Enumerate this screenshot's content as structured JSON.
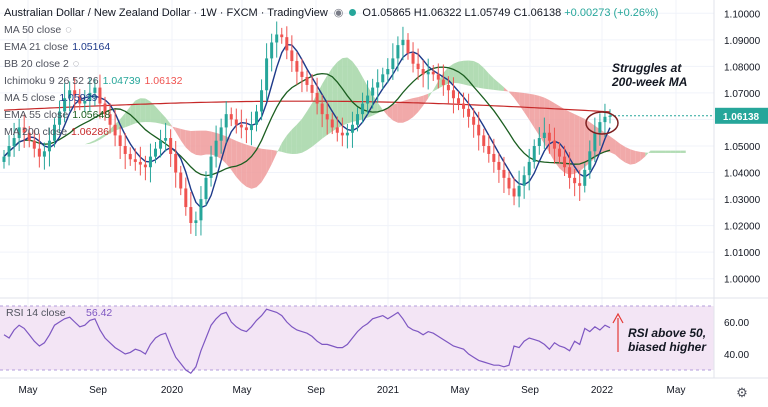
{
  "header": {
    "title": "Australian Dollar / New Zealand Dollar · 1W · FXCM · TradingView",
    "ohlc": "O1.05865 H1.06322 L1.05749 C1.06138",
    "change": "+0.00273 (+0.26%)"
  },
  "legend": [
    {
      "label": "MA 50 close",
      "value": "",
      "color": "#787b86"
    },
    {
      "label": "EMA 21 close",
      "value": "1.05164",
      "color": "#1e3a8a"
    },
    {
      "label": "BB 20 close 2",
      "value": "",
      "color": "#787b86"
    },
    {
      "label": "Ichimoku 9 26 52 26",
      "value": "1.04739",
      "value2": "1.06132",
      "color": "#26a69a",
      "color2": "#ef5350"
    },
    {
      "label": "MA 5 close",
      "value": "1.05929",
      "color": "#1e3a8a"
    },
    {
      "label": "EMA 55 close",
      "value": "1.05648",
      "color": "#1b5e20"
    },
    {
      "label": "MA 200 close",
      "value": "1.06286",
      "color": "#c62828"
    }
  ],
  "annotations": {
    "main": "Struggles at\n200-week MA",
    "rsi": "RSI above 50,\nbiased higher"
  },
  "rsi_legend": {
    "label": "RSI 14 close",
    "value": "56.42"
  },
  "price_label": "1.06138",
  "colors": {
    "up": "#26a69a",
    "down": "#ef5350",
    "rsi_line": "#7e57c2",
    "rsi_bg": "#f3e5f5",
    "cloud_bull": "#a5d6a7",
    "cloud_bear": "#ef9a9a"
  },
  "chart_data": [
    {
      "type": "candlestick",
      "title": "Australian Dollar / New Zealand Dollar · 1W · FXCM",
      "x_ticks": [
        "May",
        "Sep",
        "2020",
        "May",
        "Sep",
        "2021",
        "May",
        "Sep",
        "2022",
        "May"
      ],
      "y_ticks": [
        1.1,
        1.09,
        1.08,
        1.07,
        1.06,
        1.05,
        1.04,
        1.03,
        1.02,
        1.01,
        1.0
      ],
      "y_tick_labels": [
        "1.10000",
        "1.09000",
        "1.08000",
        "1.07000",
        "1.06000",
        "1.05000",
        "1.04000",
        "1.03000",
        "1.02000",
        "1.01000",
        "1.00000"
      ],
      "ylim": [
        0.995,
        1.105
      ],
      "last_price": 1.06138,
      "close_series": [
        1.046,
        1.05,
        1.053,
        1.057,
        1.055,
        1.052,
        1.049,
        1.046,
        1.048,
        1.052,
        1.058,
        1.063,
        1.068,
        1.071,
        1.069,
        1.066,
        1.067,
        1.07,
        1.072,
        1.066,
        1.062,
        1.058,
        1.054,
        1.05,
        1.047,
        1.045,
        1.044,
        1.043,
        1.042,
        1.046,
        1.049,
        1.052,
        1.053,
        1.047,
        1.04,
        1.034,
        1.027,
        1.021,
        1.022,
        1.03,
        1.038,
        1.046,
        1.052,
        1.057,
        1.062,
        1.06,
        1.058,
        1.057,
        1.056,
        1.058,
        1.063,
        1.071,
        1.083,
        1.089,
        1.092,
        1.091,
        1.086,
        1.082,
        1.078,
        1.076,
        1.073,
        1.07,
        1.066,
        1.062,
        1.06,
        1.057,
        1.055,
        1.054,
        1.055,
        1.058,
        1.062,
        1.066,
        1.069,
        1.072,
        1.074,
        1.077,
        1.079,
        1.083,
        1.088,
        1.09,
        1.085,
        1.081,
        1.079,
        1.077,
        1.078,
        1.077,
        1.075,
        1.073,
        1.071,
        1.068,
        1.066,
        1.064,
        1.061,
        1.058,
        1.054,
        1.05,
        1.047,
        1.044,
        1.041,
        1.038,
        1.034,
        1.031,
        1.035,
        1.039,
        1.044,
        1.05,
        1.053,
        1.055,
        1.052,
        1.049,
        1.046,
        1.042,
        1.038,
        1.036,
        1.035,
        1.041,
        1.048,
        1.055,
        1.059,
        1.061,
        1.06138
      ],
      "series": [
        {
          "name": "MA 5 close",
          "last": 1.05929
        },
        {
          "name": "EMA 21 close",
          "last": 1.05164
        },
        {
          "name": "EMA 55 close",
          "last": 1.05648
        },
        {
          "name": "MA 200 close",
          "last": 1.06286
        }
      ]
    },
    {
      "type": "line",
      "title": "RSI 14 close",
      "y_ticks": [
        60,
        40
      ],
      "y_tick_labels": [
        "60.00",
        "40.00"
      ],
      "ylim": [
        30,
        70
      ],
      "band": [
        30,
        70
      ],
      "last": 56.42,
      "values": [
        52,
        50,
        55,
        58,
        56,
        52,
        48,
        45,
        47,
        52,
        58,
        60,
        62,
        63,
        60,
        57,
        58,
        61,
        62,
        55,
        50,
        47,
        44,
        42,
        40,
        41,
        43,
        42,
        40,
        46,
        50,
        52,
        53,
        45,
        38,
        34,
        30,
        28,
        32,
        42,
        50,
        58,
        62,
        65,
        66,
        60,
        57,
        55,
        54,
        57,
        61,
        64,
        68,
        67,
        66,
        64,
        60,
        57,
        55,
        54,
        53,
        51,
        48,
        46,
        46,
        45,
        44,
        44,
        46,
        50,
        54,
        57,
        59,
        62,
        63,
        64,
        62,
        64,
        66,
        62,
        57,
        55,
        54,
        52,
        54,
        53,
        51,
        49,
        47,
        45,
        44,
        43,
        40,
        38,
        36,
        35,
        34,
        33,
        33,
        32,
        33,
        45,
        44,
        48,
        50,
        49,
        48,
        46,
        43,
        47,
        45,
        44,
        42,
        48,
        46,
        56,
        54,
        57,
        55,
        58,
        56.42
      ]
    }
  ]
}
